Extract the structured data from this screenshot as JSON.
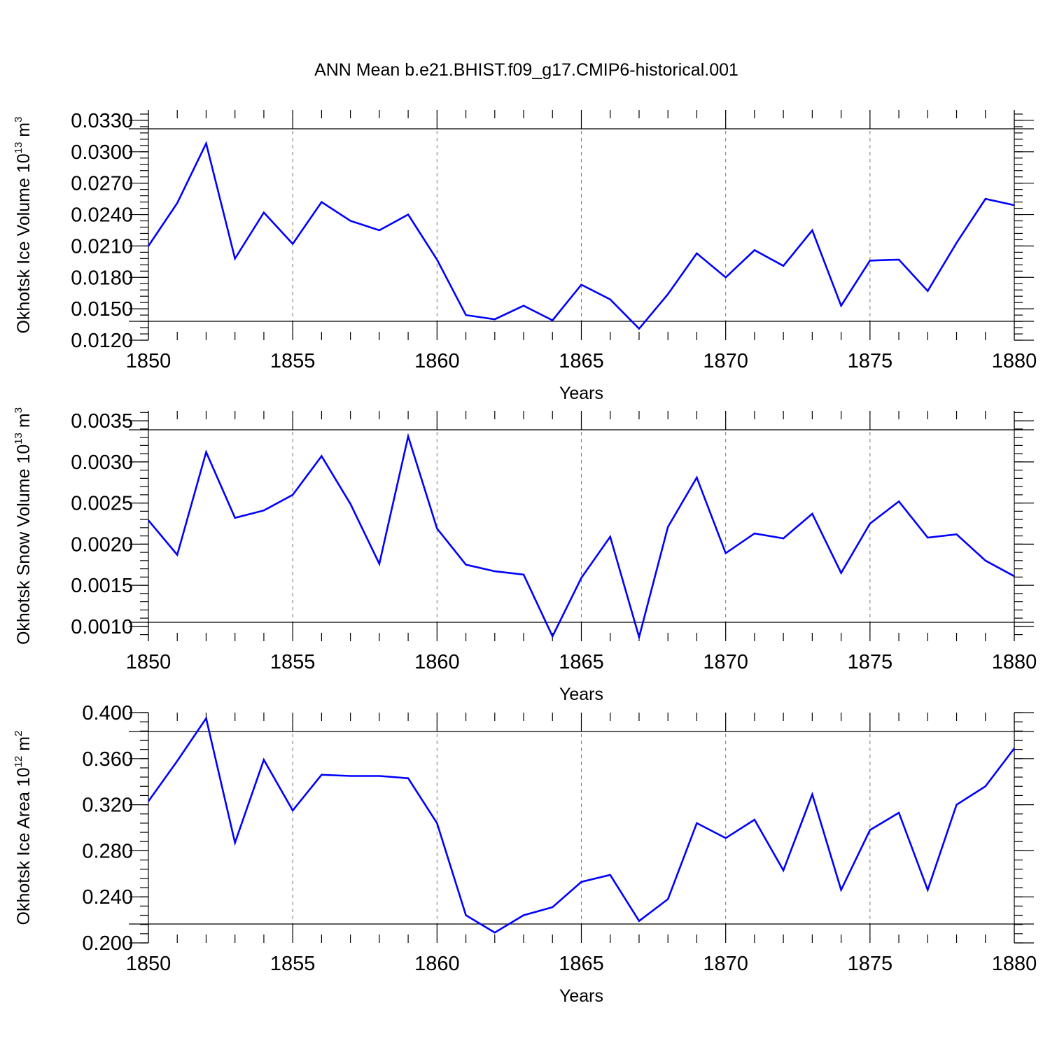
{
  "title": "ANN Mean b.e21.BHIST.f09_g17.CMIP6-historical.001",
  "colors": {
    "line": "#0000ff",
    "grid": "#777777",
    "frame": "#000000"
  },
  "chart_data": [
    {
      "type": "line",
      "ylabel": "Okhotsk Ice Volume 10",
      "ylabel_exp": "13",
      "ylabel_unit": " m",
      "ylabel_unit_exp": "3",
      "xlabel": "Years",
      "xlim": [
        1850,
        1880
      ],
      "ylim": [
        0.012,
        0.034
      ],
      "yticks": [
        "0.0120",
        "0.0150",
        "0.0180",
        "0.0210",
        "0.0240",
        "0.0270",
        "0.0300",
        "0.0330"
      ],
      "xticks": [
        "1850",
        "1855",
        "1860",
        "1865",
        "1870",
        "1875",
        "1880"
      ],
      "x": [
        1850,
        1851,
        1852,
        1853,
        1854,
        1855,
        1856,
        1857,
        1858,
        1859,
        1860,
        1861,
        1862,
        1863,
        1864,
        1865,
        1866,
        1867,
        1868,
        1869,
        1870,
        1871,
        1872,
        1873,
        1874,
        1875,
        1876,
        1877,
        1878,
        1879,
        1880
      ],
      "values": [
        0.021,
        0.0251,
        0.0308,
        0.0198,
        0.0242,
        0.0212,
        0.0252,
        0.0234,
        0.0225,
        0.024,
        0.0197,
        0.0144,
        0.014,
        0.0153,
        0.0139,
        0.0173,
        0.0159,
        0.0131,
        0.0164,
        0.0203,
        0.018,
        0.0206,
        0.0191,
        0.0225,
        0.0153,
        0.0196,
        0.0197,
        0.0167,
        0.0213,
        0.0255,
        0.0249
      ]
    },
    {
      "type": "line",
      "ylabel": "Okhotsk Snow Volume 10",
      "ylabel_exp": "13",
      "ylabel_unit": " m",
      "ylabel_unit_exp": "3",
      "xlabel": "Years",
      "xlim": [
        1850,
        1880
      ],
      "ylim": [
        0.00082,
        0.00362
      ],
      "yticks": [
        "0.0010",
        "0.0015",
        "0.0020",
        "0.0025",
        "0.0030",
        "0.0035"
      ],
      "xticks": [
        "1850",
        "1855",
        "1860",
        "1865",
        "1870",
        "1875",
        "1880"
      ],
      "x": [
        1850,
        1851,
        1852,
        1853,
        1854,
        1855,
        1856,
        1857,
        1858,
        1859,
        1860,
        1861,
        1862,
        1863,
        1864,
        1865,
        1866,
        1867,
        1868,
        1869,
        1870,
        1871,
        1872,
        1873,
        1874,
        1875,
        1876,
        1877,
        1878,
        1879,
        1880
      ],
      "values": [
        0.00229,
        0.00187,
        0.00312,
        0.00232,
        0.00241,
        0.0026,
        0.00307,
        0.00249,
        0.00176,
        0.00331,
        0.00219,
        0.00175,
        0.00167,
        0.00163,
        0.00088,
        0.00159,
        0.00209,
        0.00087,
        0.00221,
        0.00281,
        0.00189,
        0.00213,
        0.00207,
        0.00237,
        0.00165,
        0.00225,
        0.00252,
        0.00208,
        0.00212,
        0.0018,
        0.00161
      ]
    },
    {
      "type": "line",
      "ylabel": "Okhotsk Ice Area 10",
      "ylabel_exp": "12",
      "ylabel_unit": " m",
      "ylabel_unit_exp": "2",
      "xlabel": "Years",
      "xlim": [
        1850,
        1880
      ],
      "ylim": [
        0.2,
        0.4
      ],
      "yticks": [
        "0.200",
        "0.240",
        "0.280",
        "0.320",
        "0.360",
        "0.400"
      ],
      "xticks": [
        "1850",
        "1855",
        "1860",
        "1865",
        "1870",
        "1875",
        "1880"
      ],
      "x": [
        1850,
        1851,
        1852,
        1853,
        1854,
        1855,
        1856,
        1857,
        1858,
        1859,
        1860,
        1861,
        1862,
        1863,
        1864,
        1865,
        1866,
        1867,
        1868,
        1869,
        1870,
        1871,
        1872,
        1873,
        1874,
        1875,
        1876,
        1877,
        1878,
        1879,
        1880
      ],
      "values": [
        0.323,
        0.358,
        0.395,
        0.287,
        0.359,
        0.315,
        0.346,
        0.345,
        0.345,
        0.343,
        0.304,
        0.224,
        0.209,
        0.224,
        0.231,
        0.253,
        0.259,
        0.219,
        0.238,
        0.304,
        0.291,
        0.307,
        0.263,
        0.329,
        0.246,
        0.298,
        0.313,
        0.246,
        0.32,
        0.336,
        0.369
      ]
    }
  ]
}
